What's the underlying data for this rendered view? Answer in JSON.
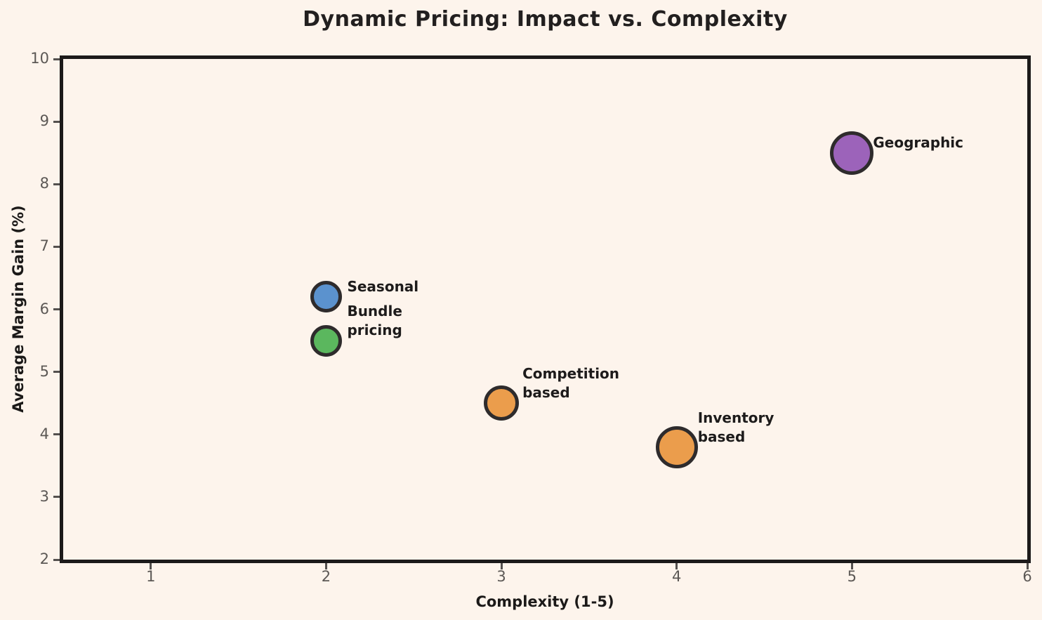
{
  "title": "Dynamic Pricing: Impact vs. Complexity",
  "background_color": "#FDF4EC",
  "chart_data": {
    "type": "scatter",
    "title": "Dynamic Pricing: Impact vs. Complexity",
    "xlabel": "Complexity (1-5)",
    "ylabel": "Average Margin Gain (%)",
    "xlim": [
      0.5,
      6
    ],
    "ylim": [
      2,
      10
    ],
    "xticks": [
      1,
      2,
      3,
      4,
      5,
      6
    ],
    "yticks": [
      2,
      3,
      4,
      5,
      6,
      7,
      8,
      9,
      10
    ],
    "grid": false,
    "legend": "none",
    "edge_color": "#2e2b2c",
    "points": [
      {
        "label": "Seasonal",
        "label_lines": [
          "Seasonal"
        ],
        "x": 2,
        "y": 6.2,
        "color": "#5B92CE",
        "diameter": 45
      },
      {
        "label": "Bundle pricing",
        "label_lines": [
          "Bundle",
          "pricing"
        ],
        "x": 2,
        "y": 5.5,
        "color": "#5BB75E",
        "diameter": 45
      },
      {
        "label": "Competition based",
        "label_lines": [
          "Competition",
          "based"
        ],
        "x": 3,
        "y": 4.5,
        "color": "#EB9D4C",
        "diameter": 50
      },
      {
        "label": "Inventory based",
        "label_lines": [
          "Inventory",
          "based"
        ],
        "x": 4,
        "y": 3.8,
        "color": "#EB9D4C",
        "diameter": 60
      },
      {
        "label": "Geographic",
        "label_lines": [
          "Geographic"
        ],
        "x": 5,
        "y": 8.5,
        "color": "#9C63BA",
        "diameter": 62
      }
    ]
  }
}
